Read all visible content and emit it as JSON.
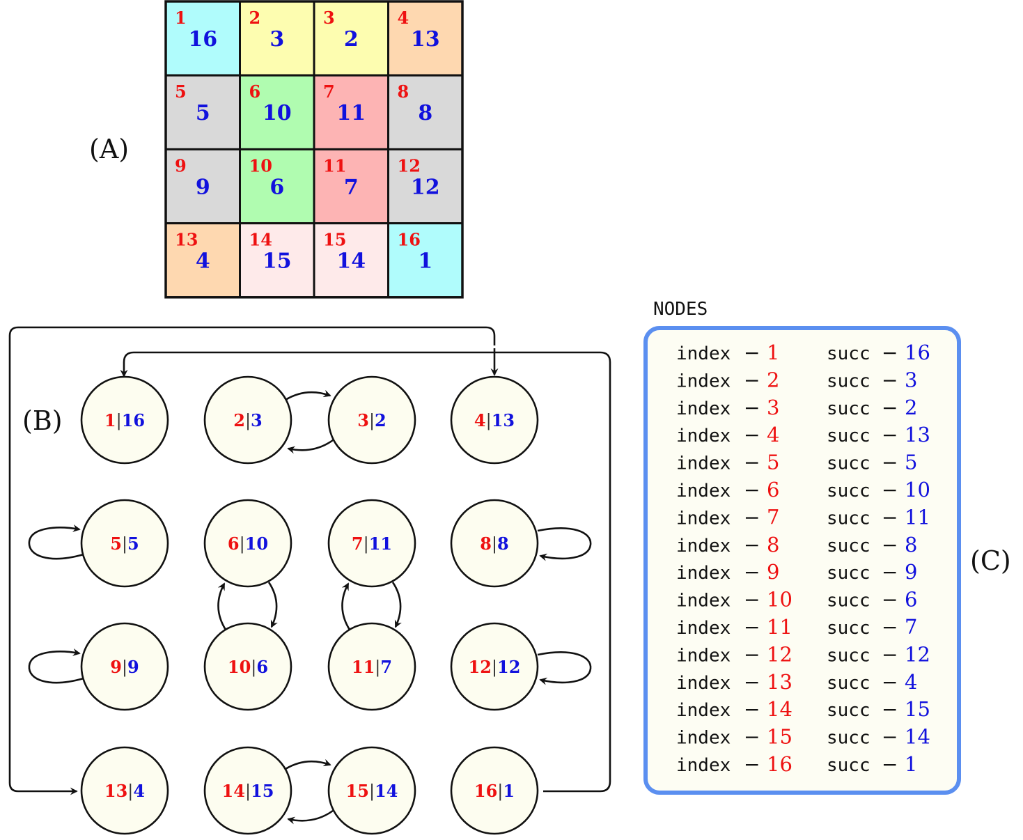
{
  "labels": {
    "panel_a": "(A)",
    "panel_b": "(B)",
    "panel_c": "(C)",
    "nodes_title": "NODES",
    "index_word": "index",
    "succ_word": "succ",
    "dash": "−",
    "separator": "|"
  },
  "grid": {
    "rows": 4,
    "cols": 4,
    "cells": [
      {
        "index": "1",
        "value": "16",
        "color": "#b0fcfc"
      },
      {
        "index": "2",
        "value": "3",
        "color": "#fdfdb0"
      },
      {
        "index": "3",
        "value": "2",
        "color": "#fdfdb0"
      },
      {
        "index": "4",
        "value": "13",
        "color": "#fed8b0"
      },
      {
        "index": "5",
        "value": "5",
        "color": "#d9d9d9"
      },
      {
        "index": "6",
        "value": "10",
        "color": "#b0fcb0"
      },
      {
        "index": "7",
        "value": "11",
        "color": "#fdb4b4"
      },
      {
        "index": "8",
        "value": "8",
        "color": "#d9d9d9"
      },
      {
        "index": "9",
        "value": "9",
        "color": "#d9d9d9"
      },
      {
        "index": "10",
        "value": "6",
        "color": "#b0fcb0"
      },
      {
        "index": "11",
        "value": "7",
        "color": "#fdb4b4"
      },
      {
        "index": "12",
        "value": "12",
        "color": "#d9d9d9"
      },
      {
        "index": "13",
        "value": "4",
        "color": "#fed8b0"
      },
      {
        "index": "14",
        "value": "15",
        "color": "#feeaea"
      },
      {
        "index": "15",
        "value": "14",
        "color": "#feeaea"
      },
      {
        "index": "16",
        "value": "1",
        "color": "#b0fcfc"
      }
    ]
  },
  "nodes": [
    {
      "index": "1",
      "succ": "16"
    },
    {
      "index": "2",
      "succ": "3"
    },
    {
      "index": "3",
      "succ": "2"
    },
    {
      "index": "4",
      "succ": "13"
    },
    {
      "index": "5",
      "succ": "5"
    },
    {
      "index": "6",
      "succ": "10"
    },
    {
      "index": "7",
      "succ": "11"
    },
    {
      "index": "8",
      "succ": "8"
    },
    {
      "index": "9",
      "succ": "9"
    },
    {
      "index": "10",
      "succ": "6"
    },
    {
      "index": "11",
      "succ": "7"
    },
    {
      "index": "12",
      "succ": "12"
    },
    {
      "index": "13",
      "succ": "4"
    },
    {
      "index": "14",
      "succ": "15"
    },
    {
      "index": "15",
      "succ": "14"
    },
    {
      "index": "16",
      "succ": "1"
    }
  ],
  "colors": {
    "index_red": "#ee1111",
    "succ_blue": "#1111dd",
    "node_fill": "#fdfdf0",
    "box_border": "#5b8ff0",
    "box_fill": "#fdfdf3"
  }
}
